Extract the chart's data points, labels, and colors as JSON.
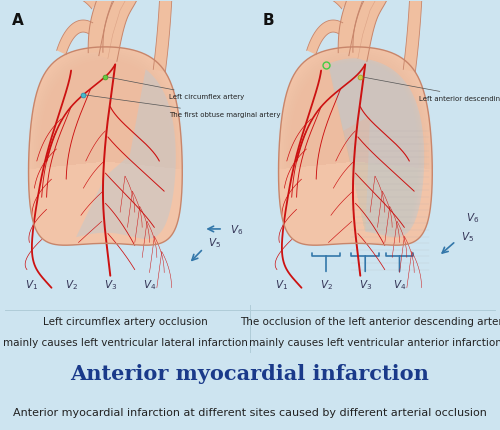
{
  "bg_color": "#cde4f0",
  "panel_bg": "#ffffff",
  "heart_fill": "#f2c4a8",
  "heart_fill2": "#edb898",
  "heart_stroke": "#c8856a",
  "vessel_fill": "#f0bfa0",
  "vessel_stroke": "#c8856a",
  "artery_color": "#cc1111",
  "artery_dark": "#aa0000",
  "infarct_A_color": "#c8c8c8",
  "infarct_B_color": "#c8c8c8",
  "infarct_alpha": 0.6,
  "label_color": "#222222",
  "blue_arrow": "#3377aa",
  "title": "Anterior myocardial infarction",
  "subtitle": "Anterior myocardial infarction at different sites caused by different arterial occlusion",
  "panel_A_label": "A",
  "panel_B_label": "B",
  "panel_A_caption_line1": "Left circumflex artery occlusion",
  "panel_A_caption_line2": "mainly causes left ventricular lateral infarction",
  "panel_B_caption_line1": "The occlusion of the left anterior descending artery",
  "panel_B_caption_line2": "mainly causes left ventricular anterior infarction",
  "artery_A_label": "Left circumflex artery",
  "artery_A2_label": "The first obtuse marginal artery",
  "artery_B_label": "Left anterior descending artery",
  "title_color": "#1a3a8a",
  "title_fontsize": 15,
  "subtitle_fontsize": 8,
  "caption_fontsize": 7.5
}
